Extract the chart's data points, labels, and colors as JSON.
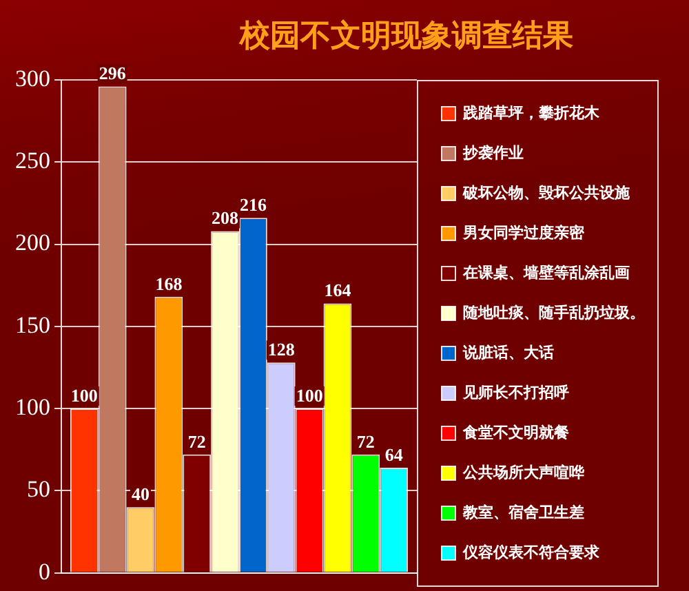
{
  "chart_data": {
    "type": "bar",
    "title": "校园不文明现象调查结果",
    "categories": [
      null
    ],
    "series": [
      {
        "name": "践踏草坪，攀折花木",
        "color": "#ff3300",
        "values": [
          100
        ]
      },
      {
        "name": "抄袭作业",
        "color": "#c07860",
        "values": [
          296
        ]
      },
      {
        "name": "破坏公物、毁坏公共设施",
        "color": "#ffcc66",
        "values": [
          40
        ]
      },
      {
        "name": "男女同学过度亲密",
        "color": "#ff9900",
        "values": [
          168
        ]
      },
      {
        "name": "在课桌、墙壁等乱涂乱画",
        "color": "#800000",
        "values": [
          72
        ]
      },
      {
        "name": "随地吐痰、随手乱扔垃圾。",
        "color": "#ffffcc",
        "values": [
          208
        ]
      },
      {
        "name": "说脏话、大话",
        "color": "#0066cc",
        "values": [
          216
        ]
      },
      {
        "name": "见师长不打招呼",
        "color": "#ccccff",
        "values": [
          128
        ]
      },
      {
        "name": "食堂不文明就餐",
        "color": "#ff0000",
        "values": [
          100
        ]
      },
      {
        "name": "公共场所大声喧哗",
        "color": "#ffff00",
        "values": [
          164
        ]
      },
      {
        "name": "教室、宿舍卫生差",
        "color": "#00ff00",
        "values": [
          72
        ]
      },
      {
        "name": "仪容仪表不符合要求",
        "color": "#00ffff",
        "values": [
          64
        ]
      }
    ],
    "ylim": [
      0,
      300
    ],
    "yticks": [
      0,
      50,
      100,
      150,
      200,
      250,
      300
    ],
    "grid": "y",
    "legend": "right",
    "data_labels": true,
    "tick_labels": "y"
  }
}
